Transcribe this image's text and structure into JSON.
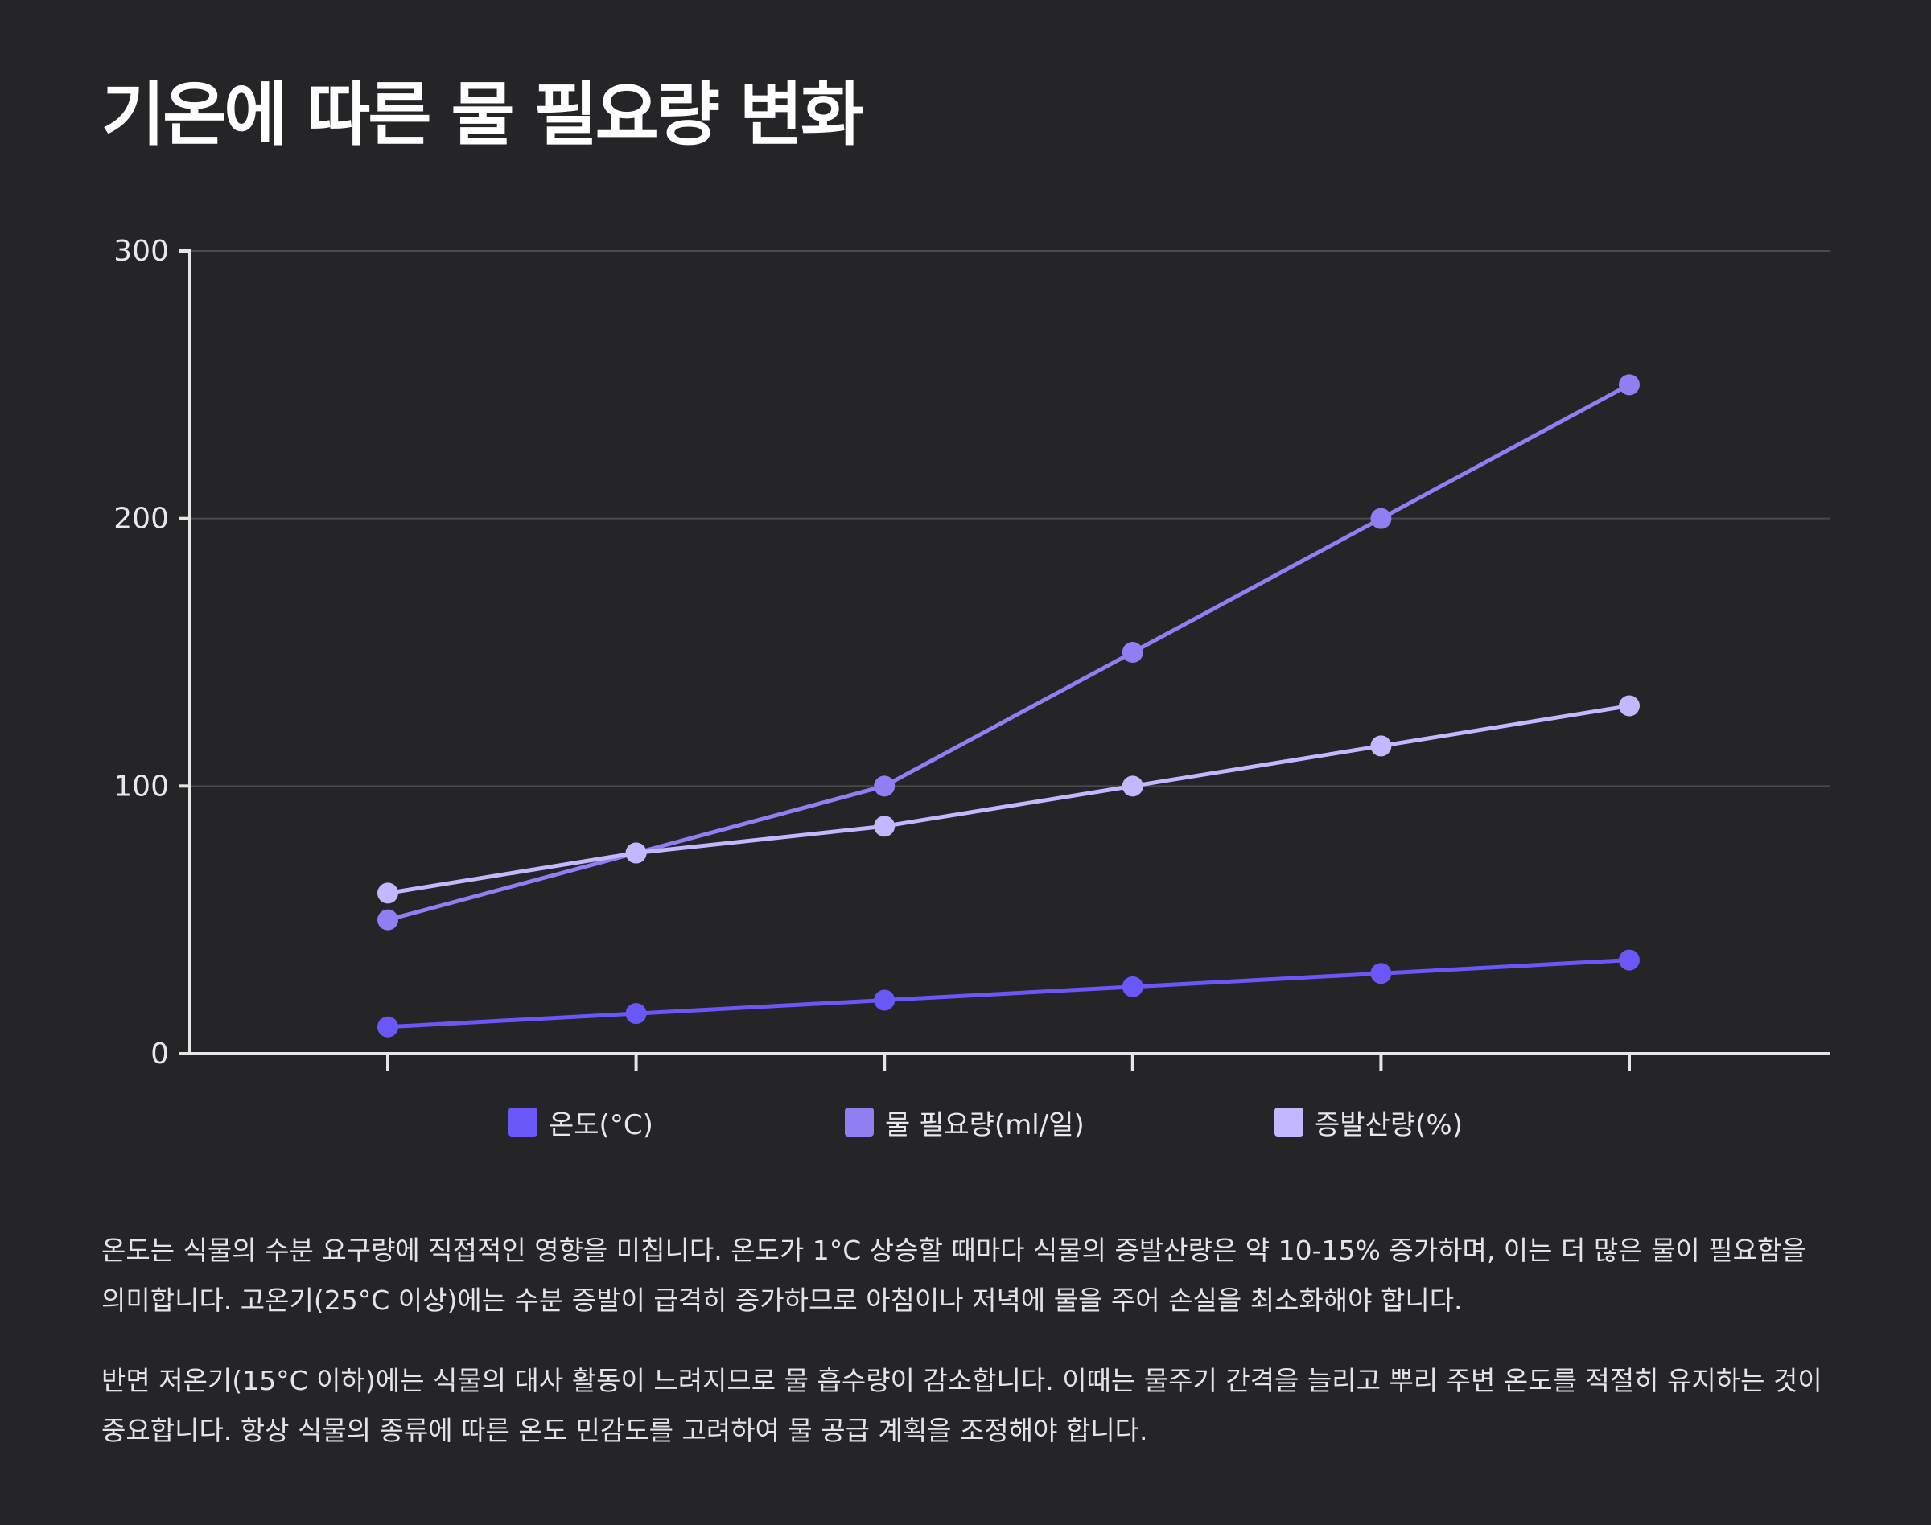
{
  "title": "기온에 따른 물 필요량 변화",
  "chart_data": {
    "type": "line",
    "x": [
      "",
      "",
      "",
      "",
      "",
      ""
    ],
    "series": [
      {
        "name": "온도(°C)",
        "color": "#6a57f8",
        "values": [
          10,
          15,
          20,
          25,
          30,
          35
        ]
      },
      {
        "name": "물 필요량(ml/일)",
        "color": "#8f7ff3",
        "values": [
          50,
          75,
          100,
          150,
          200,
          250
        ]
      },
      {
        "name": "증발산량(%)",
        "color": "#c3b8ff",
        "values": [
          60,
          75,
          85,
          100,
          115,
          130
        ]
      }
    ],
    "yticks": [
      0,
      100,
      200,
      300
    ],
    "ylim": [
      0,
      300
    ],
    "grid": true,
    "legend_position": "bottom"
  },
  "paragraphs": [
    "온도는 식물의 수분 요구량에 직접적인 영향을 미칩니다. 온도가 1°C 상승할 때마다 식물의 증발산량은 약 10-15% 증가하며, 이는 더 많은 물이 필요함을 의미합니다. 고온기(25°C 이상)에는 수분 증발이 급격히 증가하므로 아침이나 저녁에 물을 주어 손실을 최소화해야 합니다.",
    "반면 저온기(15°C 이하)에는 식물의 대사 활동이 느려지므로 물 흡수량이 감소합니다. 이때는 물주기 간격을 늘리고 뿌리 주변 온도를 적절히 유지하는 것이 중요합니다. 항상 식물의 종류에 따른 온도 민감도를 고려하여 물 공급 계획을 조정해야 합니다."
  ]
}
